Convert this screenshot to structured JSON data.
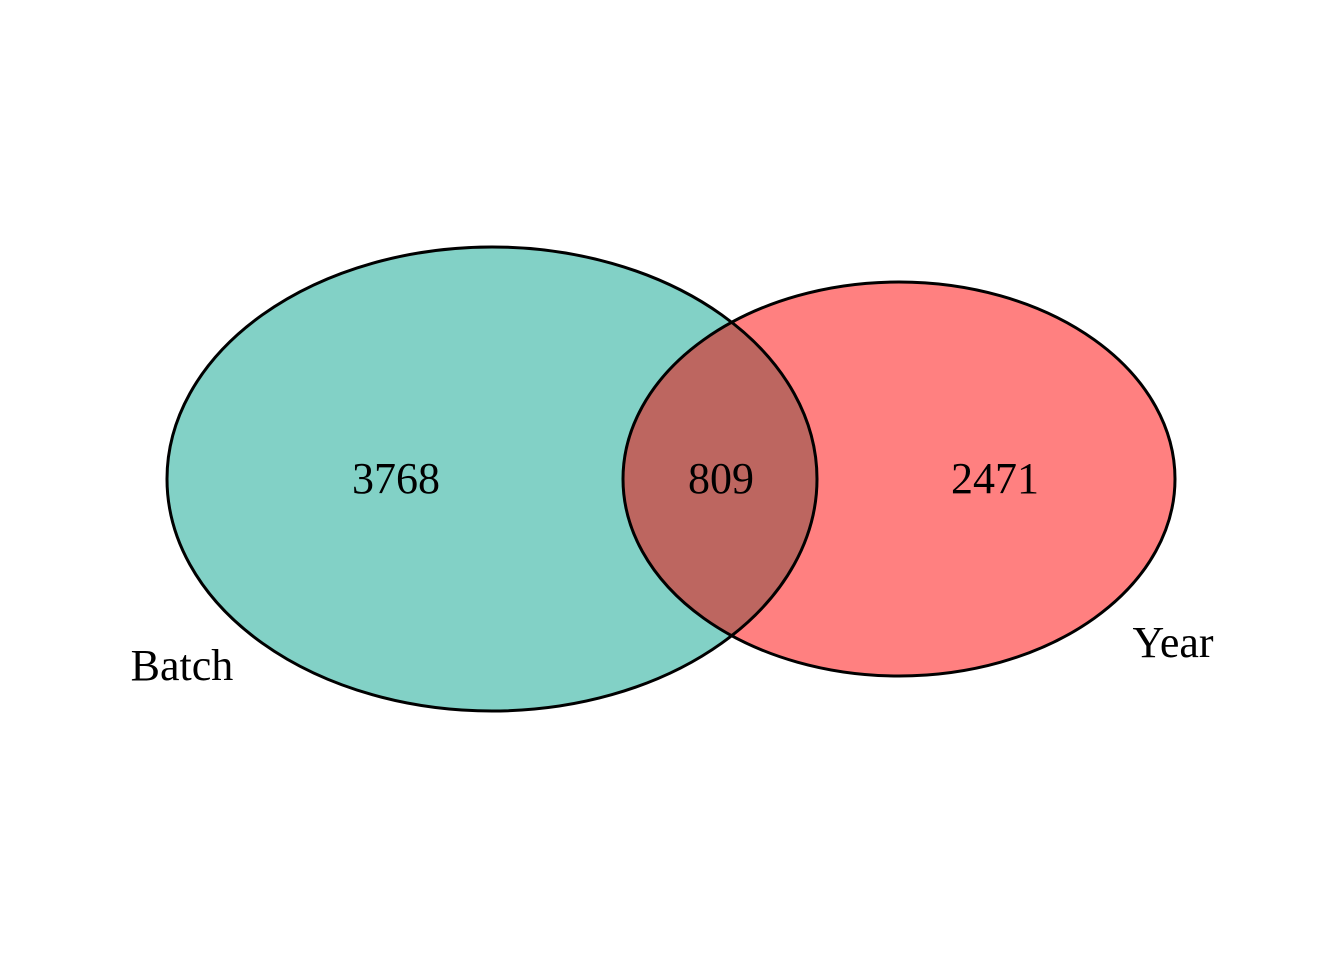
{
  "chart_data": {
    "type": "venn",
    "sets": [
      {
        "name": "Batch",
        "only_count": "3768",
        "color": "#82D1C6"
      },
      {
        "name": "Year",
        "only_count": "2471",
        "color": "#FF8080"
      }
    ],
    "intersection": {
      "sets": [
        "Batch",
        "Year"
      ],
      "count": "809",
      "color": "#BD6660"
    },
    "outline_color": "#000000"
  }
}
